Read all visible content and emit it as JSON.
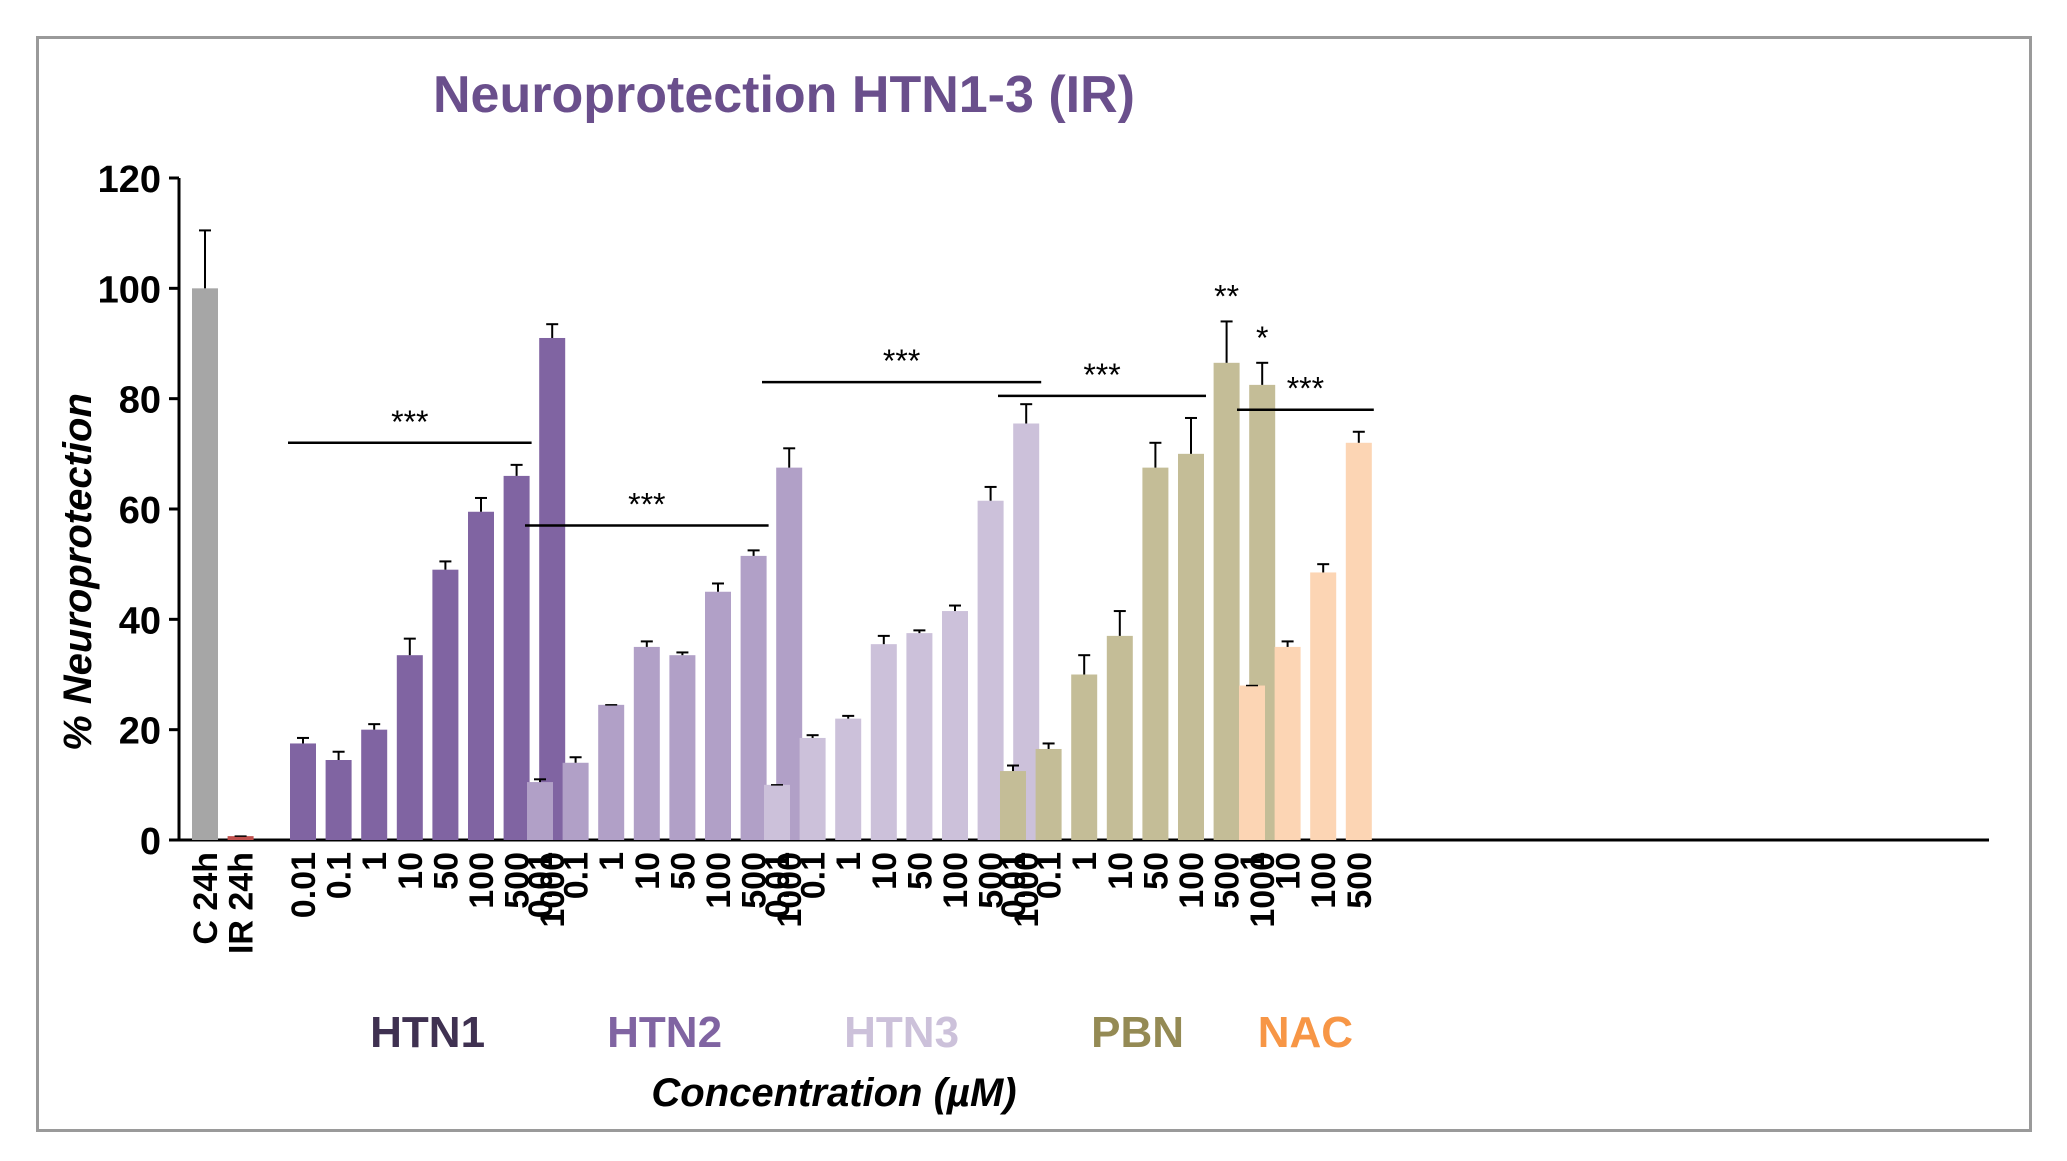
{
  "chart_data": {
    "type": "bar",
    "title": "Neuroprotection HTN1-3 (IR)",
    "ylabel": "% Neuroprotection",
    "xlabel": "Concentration (µM)",
    "ylim": [
      0,
      120
    ],
    "yticks": [
      0,
      20,
      40,
      60,
      80,
      100,
      120
    ],
    "colors": {
      "title": "#6a4f8c",
      "axis": "#000000",
      "HTN1": "#8064a2",
      "HTN2": "#b1a0c7",
      "HTN3": "#ccc1da",
      "PBN": "#c4bd97",
      "NAC": "#fcd5b4",
      "control": "#a6a6a6",
      "ir": "#c0504d"
    },
    "groups": [
      {
        "name": "",
        "color_key": "control",
        "categories": [
          "C 24h",
          "IR 24h"
        ],
        "colors": [
          "#a6a6a6",
          "#c0504d"
        ],
        "values": [
          100,
          0.7
        ],
        "errors": [
          10.5,
          0
        ],
        "stars": [
          "",
          ""
        ]
      },
      {
        "name": "HTN1",
        "label_color": "#3f3151",
        "categories": [
          "0.01",
          "0.1",
          "1",
          "10",
          "50",
          "100",
          "500",
          "1000"
        ],
        "values": [
          17.5,
          14.5,
          20,
          33.5,
          49,
          59.5,
          66,
          91
        ],
        "errors": [
          1,
          1.5,
          1,
          3,
          1.5,
          2.5,
          2,
          2.5
        ],
        "stars": [
          "",
          "",
          "",
          "",
          "",
          "",
          "",
          ""
        ],
        "sig": {
          "label": "***",
          "from": 0,
          "to": 6,
          "y": 72
        }
      },
      {
        "name": "HTN2",
        "label_color": "#8064a2",
        "categories": [
          "0.01",
          "0.1",
          "1",
          "10",
          "50",
          "100",
          "500",
          "1000"
        ],
        "values": [
          10.5,
          14,
          24.5,
          35,
          33.5,
          45,
          51.5,
          67.5
        ],
        "errors": [
          0.5,
          1,
          0,
          1,
          0.5,
          1.5,
          1,
          3.5
        ],
        "stars": [
          "",
          "",
          "",
          "",
          "",
          "",
          "",
          ""
        ],
        "sig": {
          "label": "***",
          "from": 0,
          "to": 6,
          "y": 57
        }
      },
      {
        "name": "HTN3",
        "label_color": "#ccc1da",
        "categories": [
          "0.01",
          "0.1",
          "1",
          "10",
          "50",
          "100",
          "500",
          "1000"
        ],
        "values": [
          10,
          18.5,
          22,
          35.5,
          37.5,
          41.5,
          61.5,
          75.5
        ],
        "errors": [
          0,
          0.5,
          0.5,
          1.5,
          0.5,
          1,
          2.5,
          3.5
        ],
        "stars": [
          "",
          "",
          "",
          "",
          "",
          "",
          "",
          ""
        ],
        "sig": {
          "label": "***",
          "from": 0,
          "to": 7,
          "y": 83
        }
      },
      {
        "name": "PBN",
        "label_color": "#948a54",
        "categories": [
          "0.01",
          "0.1",
          "1",
          "10",
          "50",
          "100",
          "500",
          "1000"
        ],
        "values": [
          12.5,
          16.5,
          30,
          37,
          67.5,
          70,
          86.5,
          82.5
        ],
        "errors": [
          1,
          1,
          3.5,
          4.5,
          4.5,
          6.5,
          7.5,
          4
        ],
        "stars": [
          "",
          "",
          "",
          "",
          "",
          "",
          "**",
          "*"
        ],
        "sig": {
          "label": "***",
          "from": 0,
          "to": 5,
          "y": 80.5
        }
      },
      {
        "name": "NAC",
        "label_color": "#f79646",
        "categories": [
          "1",
          "10",
          "100",
          "500"
        ],
        "values": [
          28,
          35,
          48.5,
          72
        ],
        "errors": [
          0,
          1,
          1.5,
          2
        ],
        "stars": [
          "",
          "",
          "",
          ""
        ],
        "sig": {
          "label": "***",
          "from": 0,
          "to": 3,
          "y": 78
        }
      }
    ]
  }
}
